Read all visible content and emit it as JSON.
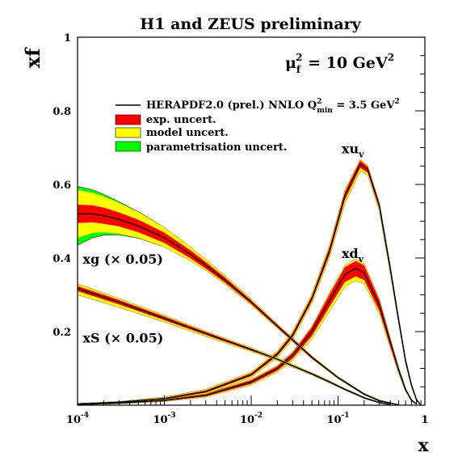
{
  "chart_data": {
    "type": "area",
    "title": "H1 and ZEUS preliminary",
    "xlabel": "x",
    "ylabel": "xf",
    "x_scale": "log",
    "xlim": [
      0.0001,
      1
    ],
    "ylim": [
      0,
      1
    ],
    "grid": false,
    "x_ticks": [
      {
        "base": "10",
        "exp": "-4",
        "value": 0.0001
      },
      {
        "base": "10",
        "exp": "-3",
        "value": 0.001
      },
      {
        "base": "10",
        "exp": "-2",
        "value": 0.01
      },
      {
        "base": "10",
        "exp": "-1",
        "value": 0.1
      },
      {
        "base": "1",
        "exp": "",
        "value": 1
      }
    ],
    "y_ticks": [
      {
        "label": "0.2",
        "value": 0.2
      },
      {
        "label": "0.4",
        "value": 0.4
      },
      {
        "label": "0.6",
        "value": 0.6
      },
      {
        "label": "0.8",
        "value": 0.8
      },
      {
        "label": "1",
        "value": 1
      }
    ],
    "scale_annotation": {
      "mu": "μ",
      "sub": "f",
      "sup": "2",
      "rest": " = 10 GeV",
      "sup2": "2"
    },
    "legend": {
      "placement": "top-left",
      "entries": [
        {
          "text": "HERAPDF2.0 (prel.) NNLO Q",
          "sup": "2",
          "sub": "min",
          "rest": " = 3.5 GeV",
          "sup2": "2",
          "color": "#000000",
          "kind": "line"
        },
        {
          "text": "exp. uncert.",
          "color": "#ff0000",
          "kind": "box"
        },
        {
          "text": "model uncert.",
          "color": "#ffff00",
          "kind": "box"
        },
        {
          "text": "parametrisation uncert.",
          "color": "#00ff00",
          "kind": "box"
        }
      ]
    },
    "band_colors": {
      "param": "#00ff00",
      "model": "#ffff00",
      "exp": "#ff0000",
      "central": "#000000"
    },
    "series": [
      {
        "name": "xu",
        "name_sub": "v",
        "x": [
          0.0001,
          0.0003,
          0.001,
          0.003,
          0.01,
          0.02,
          0.03,
          0.05,
          0.08,
          0.12,
          0.18,
          0.22,
          0.3,
          0.4,
          0.5,
          0.6,
          0.7,
          0.8,
          0.88
        ],
        "central": [
          0.003,
          0.008,
          0.018,
          0.037,
          0.083,
          0.139,
          0.19,
          0.29,
          0.42,
          0.57,
          0.655,
          0.64,
          0.54,
          0.37,
          0.23,
          0.12,
          0.055,
          0.015,
          0.003
        ],
        "exp_lo": [
          0.002,
          0.007,
          0.016,
          0.034,
          0.079,
          0.134,
          0.184,
          0.283,
          0.41,
          0.558,
          0.645,
          0.632,
          0.532,
          0.363,
          0.225,
          0.116,
          0.052,
          0.013,
          0.002
        ],
        "exp_hi": [
          0.004,
          0.009,
          0.02,
          0.04,
          0.087,
          0.144,
          0.196,
          0.297,
          0.43,
          0.58,
          0.665,
          0.648,
          0.548,
          0.377,
          0.235,
          0.124,
          0.058,
          0.017,
          0.004
        ],
        "model_lo": [
          0.001,
          0.006,
          0.014,
          0.031,
          0.075,
          0.13,
          0.179,
          0.277,
          0.403,
          0.548,
          0.636,
          0.625,
          0.526,
          0.358,
          0.221,
          0.113,
          0.05,
          0.012,
          0.002
        ],
        "model_hi": [
          0.005,
          0.01,
          0.022,
          0.043,
          0.09,
          0.148,
          0.2,
          0.302,
          0.436,
          0.585,
          0.668,
          0.65,
          0.55,
          0.379,
          0.237,
          0.126,
          0.059,
          0.018,
          0.004
        ],
        "param_lo": [
          0.001,
          0.006,
          0.014,
          0.031,
          0.075,
          0.13,
          0.179,
          0.277,
          0.403,
          0.548,
          0.636,
          0.625,
          0.526,
          0.358,
          0.221,
          0.113,
          0.05,
          0.012,
          0.002
        ],
        "param_hi": [
          0.005,
          0.01,
          0.022,
          0.043,
          0.09,
          0.148,
          0.2,
          0.302,
          0.436,
          0.585,
          0.668,
          0.65,
          0.55,
          0.379,
          0.237,
          0.126,
          0.059,
          0.018,
          0.004
        ]
      },
      {
        "name": "xd",
        "name_sub": "v",
        "x": [
          0.0001,
          0.0003,
          0.001,
          0.003,
          0.01,
          0.02,
          0.03,
          0.05,
          0.08,
          0.12,
          0.16,
          0.2,
          0.3,
          0.4,
          0.5,
          0.6,
          0.7,
          0.8
        ],
        "central": [
          0.002,
          0.006,
          0.013,
          0.027,
          0.063,
          0.1,
          0.135,
          0.2,
          0.285,
          0.355,
          0.372,
          0.36,
          0.27,
          0.17,
          0.095,
          0.042,
          0.014,
          0.003
        ],
        "exp_lo": [
          0.0015,
          0.005,
          0.011,
          0.024,
          0.058,
          0.094,
          0.127,
          0.188,
          0.268,
          0.335,
          0.35,
          0.34,
          0.255,
          0.16,
          0.089,
          0.039,
          0.012,
          0.002
        ],
        "exp_hi": [
          0.0025,
          0.007,
          0.015,
          0.03,
          0.068,
          0.106,
          0.143,
          0.212,
          0.302,
          0.375,
          0.392,
          0.38,
          0.285,
          0.18,
          0.101,
          0.045,
          0.016,
          0.004
        ],
        "model_lo": [
          0.001,
          0.004,
          0.01,
          0.022,
          0.055,
          0.09,
          0.122,
          0.18,
          0.256,
          0.322,
          0.338,
          0.33,
          0.248,
          0.155,
          0.086,
          0.037,
          0.011,
          0.002
        ],
        "model_hi": [
          0.003,
          0.008,
          0.016,
          0.031,
          0.07,
          0.108,
          0.145,
          0.214,
          0.306,
          0.38,
          0.397,
          0.385,
          0.288,
          0.182,
          0.102,
          0.046,
          0.016,
          0.004
        ],
        "param_lo": [
          0.001,
          0.004,
          0.01,
          0.022,
          0.055,
          0.09,
          0.122,
          0.18,
          0.256,
          0.322,
          0.338,
          0.33,
          0.248,
          0.155,
          0.086,
          0.037,
          0.011,
          0.002
        ],
        "param_hi": [
          0.003,
          0.008,
          0.016,
          0.031,
          0.07,
          0.108,
          0.145,
          0.214,
          0.306,
          0.38,
          0.397,
          0.385,
          0.288,
          0.182,
          0.102,
          0.046,
          0.016,
          0.004
        ]
      },
      {
        "name": "xg (× 0.05)",
        "x": [
          0.0001,
          0.00015,
          0.0002,
          0.0003,
          0.0005,
          0.001,
          0.002,
          0.003,
          0.005,
          0.01,
          0.02,
          0.05,
          0.1,
          0.2,
          0.3,
          0.5
        ],
        "central": [
          0.52,
          0.52,
          0.515,
          0.505,
          0.487,
          0.455,
          0.41,
          0.38,
          0.34,
          0.28,
          0.215,
          0.13,
          0.075,
          0.03,
          0.012,
          0.001
        ],
        "exp_lo": [
          0.495,
          0.497,
          0.493,
          0.486,
          0.47,
          0.441,
          0.399,
          0.371,
          0.333,
          0.275,
          0.211,
          0.127,
          0.073,
          0.029,
          0.011,
          0.0008
        ],
        "exp_hi": [
          0.545,
          0.543,
          0.537,
          0.524,
          0.504,
          0.469,
          0.421,
          0.389,
          0.347,
          0.285,
          0.219,
          0.133,
          0.077,
          0.031,
          0.013,
          0.0012
        ],
        "model_lo": [
          0.455,
          0.468,
          0.47,
          0.466,
          0.455,
          0.43,
          0.392,
          0.366,
          0.329,
          0.272,
          0.209,
          0.126,
          0.072,
          0.028,
          0.01,
          0.0006
        ],
        "model_hi": [
          0.585,
          0.577,
          0.567,
          0.55,
          0.525,
          0.483,
          0.43,
          0.396,
          0.352,
          0.288,
          0.221,
          0.134,
          0.078,
          0.032,
          0.014,
          0.0014
        ],
        "param_lo": [
          0.435,
          0.455,
          0.462,
          0.463,
          0.454,
          0.43,
          0.392,
          0.366,
          0.329,
          0.272,
          0.209,
          0.126,
          0.072,
          0.028,
          0.01,
          0.0006
        ],
        "param_hi": [
          0.595,
          0.585,
          0.573,
          0.553,
          0.526,
          0.483,
          0.43,
          0.396,
          0.352,
          0.288,
          0.221,
          0.134,
          0.078,
          0.032,
          0.014,
          0.0014
        ]
      },
      {
        "name": "xS (× 0.05)",
        "x": [
          0.0001,
          0.0003,
          0.001,
          0.003,
          0.01,
          0.02,
          0.03,
          0.05,
          0.08,
          0.12,
          0.2,
          0.3,
          0.4
        ],
        "central": [
          0.317,
          0.28,
          0.236,
          0.195,
          0.151,
          0.125,
          0.107,
          0.085,
          0.063,
          0.043,
          0.02,
          0.007,
          0.002
        ],
        "exp_lo": [
          0.31,
          0.274,
          0.231,
          0.191,
          0.148,
          0.123,
          0.105,
          0.083,
          0.061,
          0.042,
          0.019,
          0.006,
          0.0015
        ],
        "exp_hi": [
          0.324,
          0.286,
          0.241,
          0.199,
          0.154,
          0.127,
          0.109,
          0.087,
          0.065,
          0.044,
          0.021,
          0.008,
          0.0025
        ],
        "model_lo": [
          0.3,
          0.266,
          0.226,
          0.187,
          0.146,
          0.121,
          0.103,
          0.082,
          0.06,
          0.041,
          0.018,
          0.006,
          0.0015
        ],
        "model_hi": [
          0.33,
          0.29,
          0.244,
          0.201,
          0.156,
          0.129,
          0.111,
          0.088,
          0.066,
          0.045,
          0.022,
          0.008,
          0.0025
        ],
        "param_lo": [
          0.3,
          0.266,
          0.226,
          0.187,
          0.146,
          0.121,
          0.103,
          0.082,
          0.06,
          0.041,
          0.018,
          0.006,
          0.0015
        ],
        "param_hi": [
          0.33,
          0.29,
          0.244,
          0.201,
          0.156,
          0.129,
          0.111,
          0.088,
          0.066,
          0.045,
          0.022,
          0.008,
          0.0025
        ]
      }
    ],
    "curve_labels": [
      {
        "series": 0,
        "text": "xu",
        "sub": "v",
        "at_x": 0.11,
        "at_y": 0.685
      },
      {
        "series": 1,
        "text": "xd",
        "sub": "v",
        "at_x": 0.11,
        "at_y": 0.4
      },
      {
        "series": 2,
        "text": "xg (× 0.05)",
        "at_x": 0.000115,
        "at_y": 0.385
      },
      {
        "series": 3,
        "text": "xS (× 0.05)",
        "at_x": 0.000115,
        "at_y": 0.17
      }
    ]
  }
}
